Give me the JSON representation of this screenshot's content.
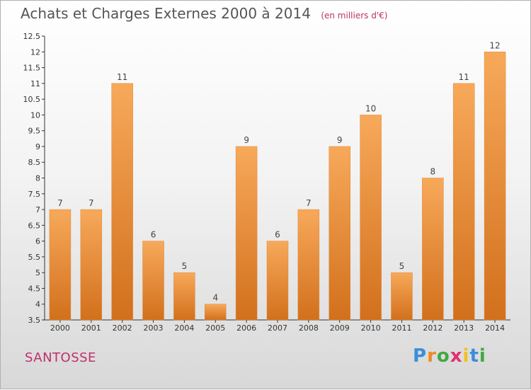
{
  "title": "Achats et Charges Externes 2000 à 2014",
  "subtitle": "(en milliers d'€)",
  "commune": "SANTOSSE",
  "logo": {
    "letters": [
      "P",
      "r",
      "o",
      "x",
      "i",
      "t",
      "i"
    ],
    "colors": [
      "#3a8fd8",
      "#f08a24",
      "#43a843",
      "#e03070",
      "#f0c020",
      "#3a8fd8",
      "#43a843"
    ]
  },
  "chart_data": {
    "type": "bar",
    "categories": [
      "2000",
      "2001",
      "2002",
      "2003",
      "2004",
      "2005",
      "2006",
      "2007",
      "2008",
      "2009",
      "2010",
      "2011",
      "2012",
      "2013",
      "2014"
    ],
    "values": [
      7,
      7,
      11,
      6,
      5,
      4,
      9,
      6,
      7,
      9,
      10,
      5,
      8,
      11,
      12
    ],
    "data_labels": [
      "7",
      "7",
      "11",
      "6",
      "5",
      "4",
      "9",
      "6",
      "7",
      "9",
      "10",
      "5",
      "8",
      "11",
      "12"
    ],
    "ylim": [
      3.5,
      12.5
    ],
    "yticks": [
      "3.5",
      "4",
      "4.5",
      "5",
      "5.5",
      "6",
      "6.5",
      "7",
      "7.5",
      "8",
      "8.5",
      "9",
      "9.5",
      "10",
      "10.5",
      "11",
      "11.5",
      "12",
      "12.5"
    ],
    "bar_color": "#f0a050",
    "grid": false
  }
}
